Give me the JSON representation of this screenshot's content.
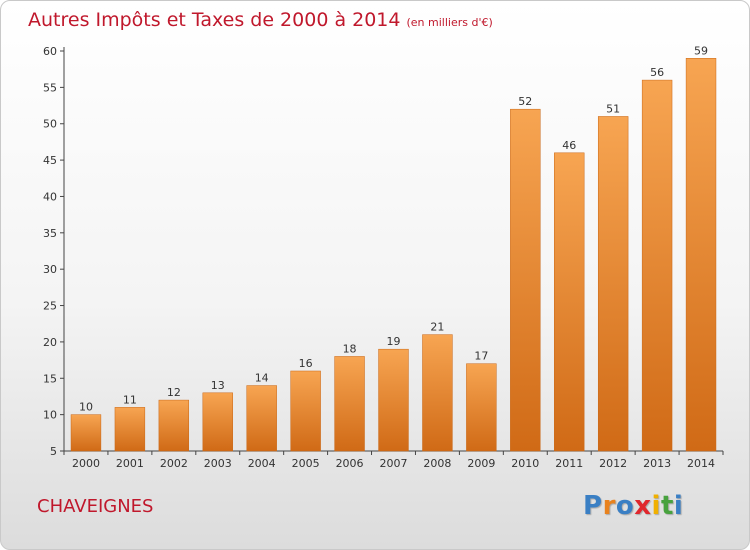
{
  "title": "Autres Impôts et Taxes de 2000 à 2014",
  "unit": "(en milliers d'€)",
  "place": "CHAVEIGNES",
  "logo": {
    "letters": [
      "P",
      "r",
      "o",
      "x",
      "i",
      "t",
      "i"
    ],
    "colors": [
      "#3a7fc4",
      "#e8821e",
      "#3a7fc4",
      "#e0272d",
      "#f0b000",
      "#48a23e",
      "#3a7fc4"
    ]
  },
  "colors": {
    "bar_top": "#f7a552",
    "bar_bottom": "#d06a16",
    "axis": "#444444",
    "title": "#c0182c"
  },
  "chart_data": {
    "type": "bar",
    "categories": [
      "2000",
      "2001",
      "2002",
      "2003",
      "2004",
      "2005",
      "2006",
      "2007",
      "2008",
      "2009",
      "2010",
      "2011",
      "2012",
      "2013",
      "2014"
    ],
    "values": [
      10,
      11,
      12,
      13,
      14,
      16,
      18,
      19,
      21,
      17,
      52,
      46,
      51,
      56,
      59
    ],
    "ylim": [
      5,
      60
    ],
    "yticks": [
      5,
      10,
      15,
      20,
      25,
      30,
      35,
      40,
      45,
      50,
      55,
      60
    ],
    "grid": false,
    "legend": "none"
  }
}
